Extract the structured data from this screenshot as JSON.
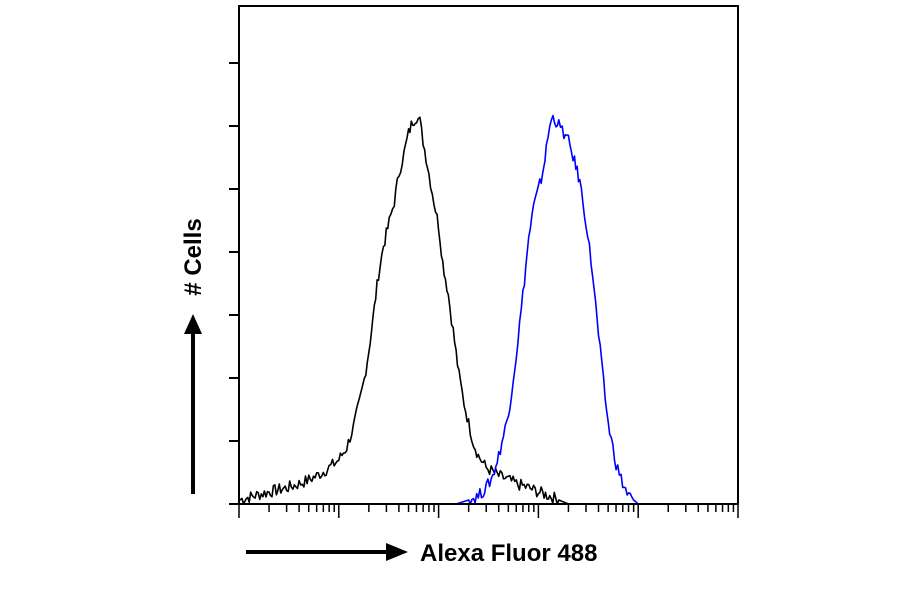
{
  "chart_data": {
    "type": "line",
    "title": "",
    "xlabel": "Alexa Fluor 488",
    "ylabel": "# Cells",
    "x_scale": "log",
    "xlim": [
      1,
      100000
    ],
    "ylim": [
      0,
      100
    ],
    "legend": "none",
    "grid": false,
    "x_ticks_labeled": false,
    "y_ticks_labeled": false,
    "series": [
      {
        "color": "#000000",
        "x": [
          1,
          1.4,
          2,
          3,
          4,
          5,
          6,
          7,
          8,
          9,
          10,
          12,
          14,
          16,
          18,
          20,
          22,
          25,
          28,
          32,
          36,
          40,
          45,
          50,
          55,
          60,
          65,
          70,
          75,
          80,
          90,
          100,
          110,
          125,
          140,
          160,
          180,
          200,
          225,
          250,
          300,
          350,
          400,
          500,
          600,
          800,
          1000,
          1300,
          1600,
          2000
        ],
        "y": [
          1,
          2,
          3,
          4,
          5,
          6,
          7,
          8,
          9,
          10,
          11,
          14,
          19,
          25,
          31,
          38,
          46,
          57,
          64,
          70,
          75,
          82,
          87,
          92,
          95,
          96,
          95,
          90,
          86,
          82,
          75,
          69,
          60,
          52,
          43,
          32,
          25,
          20,
          15,
          12,
          9,
          8,
          7,
          6,
          5,
          4,
          3,
          2,
          1,
          0
        ]
      },
      {
        "color": "#0000ff",
        "x": [
          150,
          200,
          250,
          300,
          350,
          400,
          500,
          600,
          700,
          800,
          900,
          1000,
          1100,
          1200,
          1300,
          1400,
          1500,
          1600,
          1800,
          2000,
          2300,
          2600,
          3000,
          3500,
          4000,
          4500,
          5000,
          6000,
          7000,
          8000,
          9000,
          10000
        ],
        "y": [
          0,
          1,
          2,
          4,
          7,
          12,
          22,
          37,
          52,
          66,
          74,
          78,
          82,
          88,
          94,
          96,
          95,
          94,
          92,
          90,
          85,
          80,
          70,
          57,
          42,
          30,
          20,
          10,
          5,
          2,
          1,
          0
        ]
      }
    ]
  }
}
